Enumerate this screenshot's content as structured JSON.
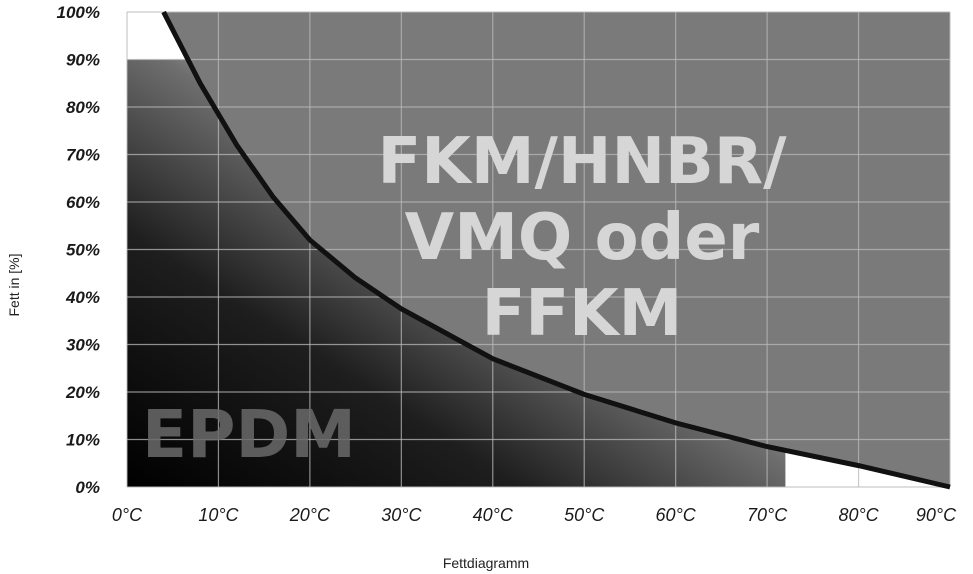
{
  "chart_data": {
    "type": "area",
    "ylabel": "Fett in [%]",
    "caption": "Fettdiagramm",
    "x": [
      0,
      10,
      20,
      30,
      40,
      50,
      60,
      70,
      80,
      90
    ],
    "x_tick_labels": [
      "0°C",
      "10°C",
      "20°C",
      "30°C",
      "40°C",
      "50°C",
      "60°C",
      "70°C",
      "80°C",
      "90°C"
    ],
    "y_tick_labels": [
      "0%",
      "10%",
      "20%",
      "30%",
      "40%",
      "50%",
      "60%",
      "70%",
      "80%",
      "90%",
      "100%"
    ],
    "xlim": [
      0,
      90
    ],
    "ylim": [
      0,
      100
    ],
    "grid": true,
    "boundary": {
      "x": [
        4,
        8,
        12,
        16,
        20,
        25,
        30,
        40,
        50,
        60,
        70,
        80,
        90
      ],
      "y": [
        100,
        85,
        72,
        61,
        52,
        44,
        37.5,
        27,
        19.5,
        13.5,
        8.5,
        4.5,
        0
      ]
    },
    "regions": [
      {
        "label_lines": [
          "FKM/HNBR/",
          "VMQ oder",
          "FFKM"
        ],
        "color": "#7a7a7a"
      },
      {
        "label_lines": [
          "EPDM"
        ],
        "color": "#000000"
      }
    ]
  }
}
